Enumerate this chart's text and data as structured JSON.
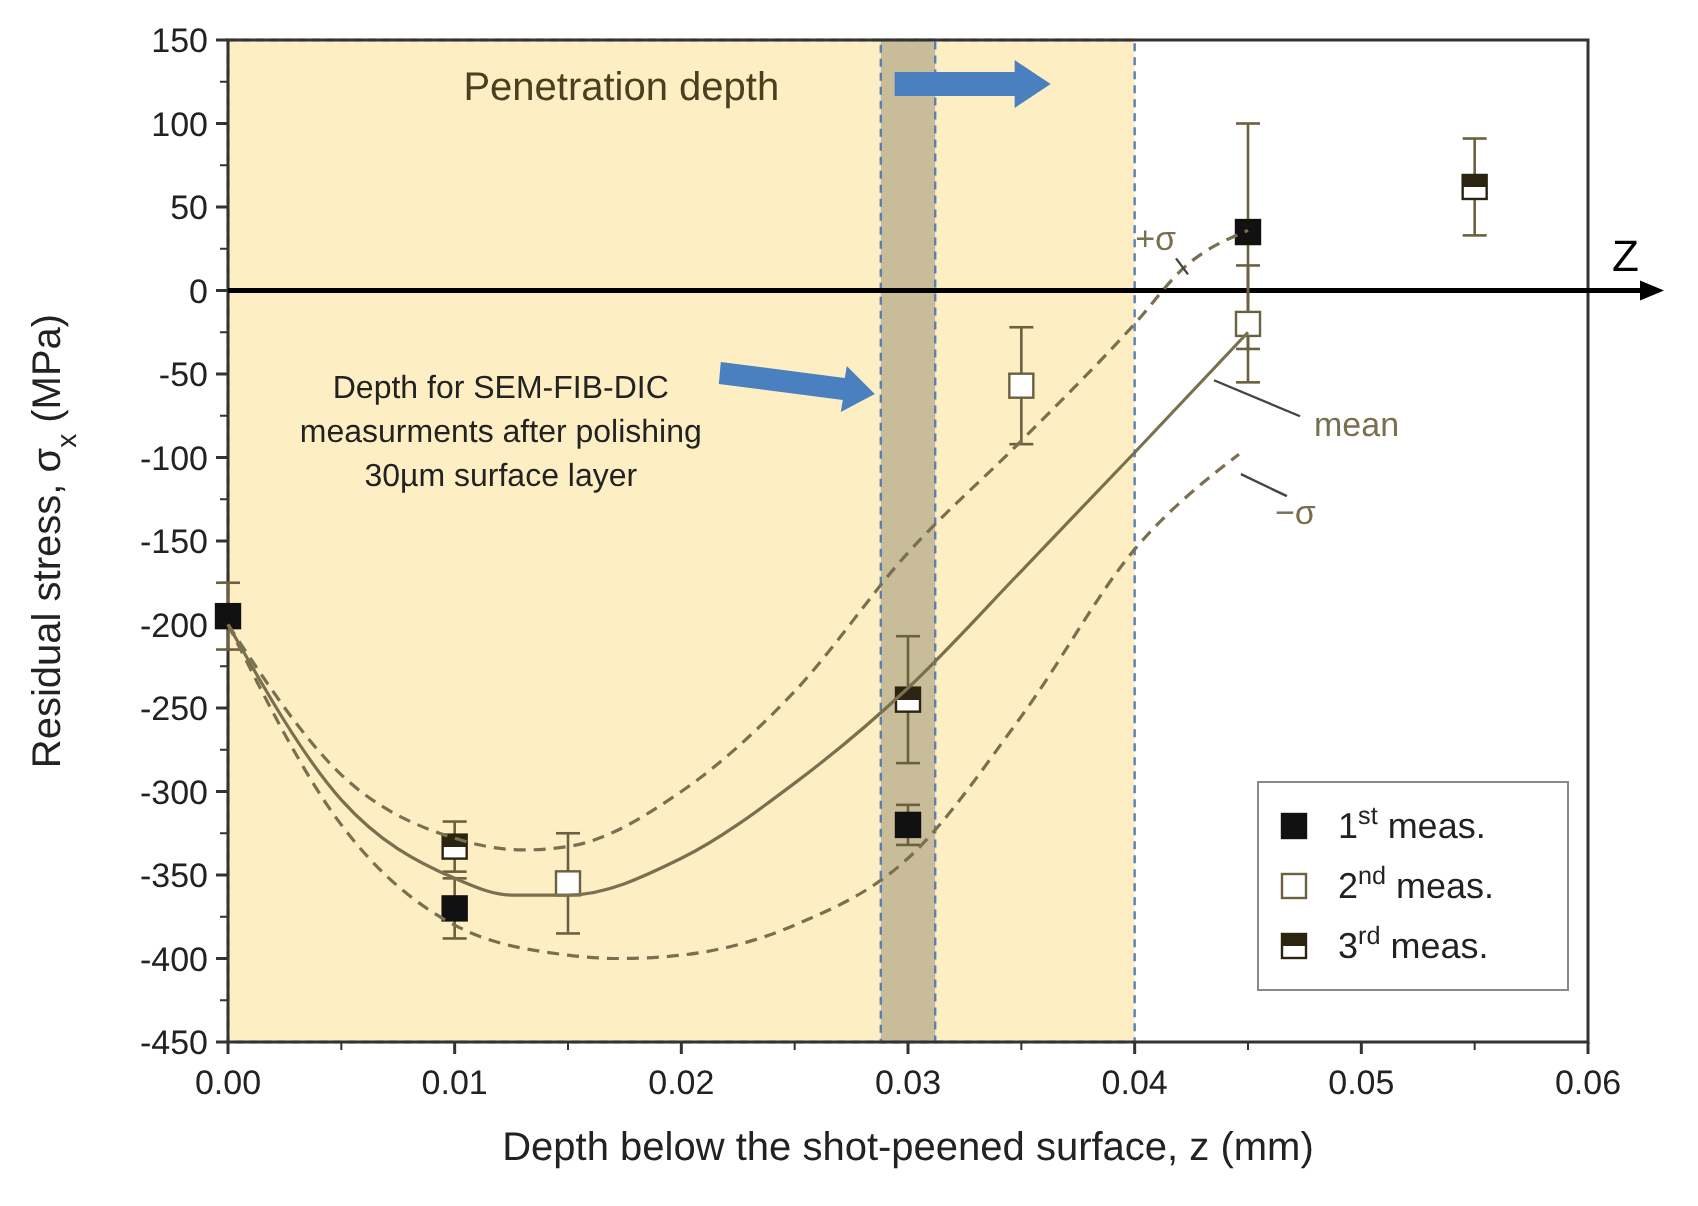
{
  "chart_data": {
    "type": "scatter",
    "xlabel": "Depth below the shot-peened surface, z (mm)",
    "ylabel": "Residual stress, σ$_{x}$ (MPa)",
    "xlim": [
      0,
      0.06
    ],
    "xticks": [
      {
        "value": 0,
        "label": "0.00"
      },
      0.01,
      0.02,
      0.03,
      0.04,
      0.05,
      0.06
    ],
    "ylim": [
      -450,
      150
    ],
    "yticks": [
      -450,
      -400,
      -350,
      -300,
      -250,
      -200,
      -150,
      -100,
      -50,
      0,
      50,
      100,
      150
    ],
    "grid": false,
    "legend": "bottom right",
    "marker": "square",
    "series": [
      {
        "name": "1$^{st}$ meas.",
        "color": "#111111",
        "x": [
          0,
          0.01,
          0.03,
          0.045
        ],
        "values": [
          -195,
          -370,
          -320,
          35
        ],
        "errors": [
          20,
          18,
          12,
          [
            -35,
            100
          ]
        ]
      },
      {
        "name": "2$^{nd}$ meas.",
        "color": "#ffffff",
        "x": [
          0.015,
          0.035,
          0.045
        ],
        "values": [
          -355,
          -57,
          -20
        ],
        "errors": [
          30,
          35,
          35
        ]
      },
      {
        "name": "3$^{rd}$ meas.",
        "color": "#2b2410",
        "x": [
          0.01,
          0.03,
          0.055
        ],
        "values": [
          -333,
          -245,
          62
        ],
        "errors": [
          15,
          38,
          29
        ]
      },
      {
        "name": "mean",
        "type": "line",
        "color": "#7a7050",
        "line_style": "solid",
        "marker": "none",
        "x": [
          0,
          0.005,
          0.01,
          0.0125,
          0.015,
          0.02,
          0.025,
          0.03,
          0.035,
          0.04,
          0.045
        ],
        "values": [
          -200,
          -305,
          -352,
          -362,
          -362,
          -340,
          -295,
          -238,
          -168,
          -97,
          -25
        ]
      },
      {
        "name": "+σ",
        "type": "line",
        "color": "#7a7050",
        "line_style": "dashed",
        "marker": "none",
        "x": [
          0,
          0.005,
          0.01,
          0.013,
          0.015,
          0.02,
          0.025,
          0.03,
          0.035,
          0.04,
          0.0422,
          0.045
        ],
        "values": [
          -200,
          -290,
          -328,
          -335,
          -333,
          -300,
          -240,
          -157,
          -90,
          -20,
          14,
          36
        ]
      },
      {
        "name": "−σ",
        "type": "line",
        "color": "#7a7050",
        "line_style": "dashed",
        "marker": "none",
        "x": [
          0,
          0.005,
          0.01,
          0.015,
          0.0173,
          0.02,
          0.025,
          0.03,
          0.035,
          0.04,
          0.0446
        ],
        "values": [
          -200,
          -320,
          -380,
          -398,
          -400,
          -398,
          -380,
          -340,
          -255,
          -155,
          -98
        ]
      }
    ],
    "bands": [
      {
        "axis": "x",
        "from": 0,
        "to": 0.04,
        "label": "Penetration depth",
        "color": "#fdefc3"
      },
      {
        "axis": "x",
        "from": 0.0288,
        "to": 0.0312,
        "color": "#c8bd98"
      }
    ],
    "annotations": [
      "Depth for SEM-FIB-DIC measurments after polishing 30µm surface layer"
    ],
    "ref_lines": [
      {
        "axis": "y",
        "value": 0,
        "label": "Z",
        "color": "#000000"
      }
    ]
  }
}
